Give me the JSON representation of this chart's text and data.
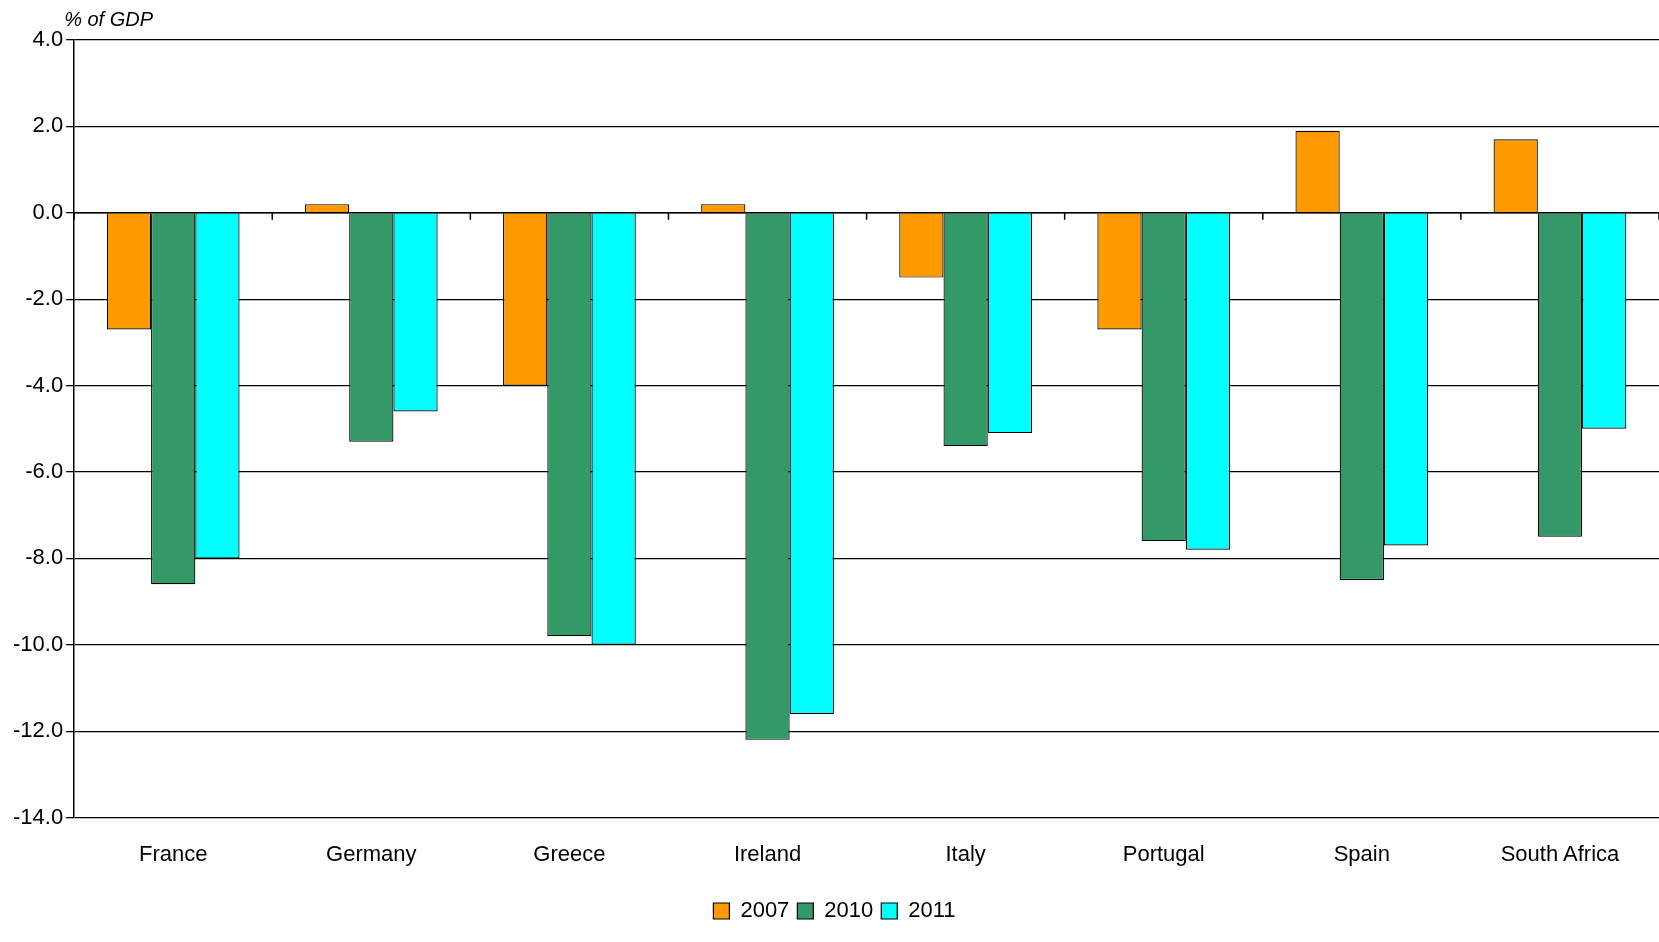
{
  "chart_data": {
    "type": "bar",
    "ylabel": "% of GDP",
    "categories": [
      "France",
      "Germany",
      "Greece",
      "Ireland",
      "Italy",
      "Portugal",
      "Spain",
      "South Africa"
    ],
    "series": [
      {
        "name": "2007",
        "color": "#ff9900",
        "values": [
          -2.7,
          0.2,
          -4.0,
          0.2,
          -1.5,
          -2.7,
          1.9,
          1.7
        ]
      },
      {
        "name": "2010",
        "color": "#339966",
        "values": [
          -8.6,
          -5.3,
          -9.8,
          -12.2,
          -5.4,
          -7.6,
          -8.5,
          -7.5
        ]
      },
      {
        "name": "2011",
        "color": "#00ffff",
        "values": [
          -8.0,
          -4.6,
          -10.0,
          -11.6,
          -5.1,
          -7.8,
          -7.7,
          -5.0
        ]
      }
    ],
    "ylim": [
      -14,
      4
    ],
    "yticks": [
      {
        "value": 4,
        "label": "4.0"
      },
      {
        "value": 2,
        "label": "2.0"
      },
      {
        "value": 0,
        "label": "0.0"
      },
      {
        "value": -2,
        "label": "-2.0"
      },
      {
        "value": -4,
        "label": "-4.0"
      },
      {
        "value": -6,
        "label": "-6.0"
      },
      {
        "value": -8,
        "label": "-8.0"
      },
      {
        "value": -10,
        "label": "-10.0"
      },
      {
        "value": -12,
        "label": "-12.0"
      },
      {
        "value": -14,
        "label": "-14.0"
      }
    ],
    "grid": "y",
    "legend": "bottom"
  }
}
